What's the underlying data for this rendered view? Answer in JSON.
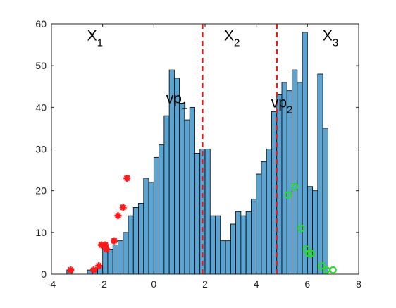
{
  "chart_data": {
    "type": "bar",
    "xlim": [
      -4,
      8
    ],
    "ylim": [
      0,
      60
    ],
    "xticks": [
      -4,
      -2,
      0,
      2,
      4,
      6,
      8
    ],
    "yticks": [
      0,
      10,
      20,
      30,
      40,
      50,
      60
    ],
    "grid": false,
    "bin_width": 0.2,
    "bin_start": -3.4,
    "counts": [
      1,
      0,
      0,
      0,
      1,
      1,
      2,
      7,
      6,
      7,
      8,
      10,
      14,
      16,
      17,
      23,
      22,
      28,
      31,
      38,
      49,
      47,
      41,
      37,
      40,
      29,
      30,
      30,
      14,
      14,
      8,
      8,
      12,
      15,
      14,
      15,
      18,
      24,
      27,
      30,
      39,
      43,
      46,
      44,
      49,
      46,
      58,
      21,
      20,
      48,
      35
    ],
    "bar_color": "#5ba3d0",
    "vlines": [
      {
        "x": 1.9,
        "color": "#e02020",
        "style": "dashed"
      },
      {
        "x": 4.8,
        "color": "#e02020",
        "style": "dashed"
      }
    ],
    "annotations": [
      {
        "id": "x1",
        "base": "X",
        "sub": "1",
        "x": -2.3,
        "y": 56
      },
      {
        "id": "x2",
        "base": "X",
        "sub": "2",
        "x": 3.05,
        "y": 56
      },
      {
        "id": "x3",
        "base": "X",
        "sub": "3",
        "x": 6.9,
        "y": 56
      },
      {
        "id": "vp1",
        "base": "vp",
        "sub": "1",
        "x": 0.9,
        "y": 41
      },
      {
        "id": "vp2",
        "base": "vp",
        "sub": "2",
        "x": 5.0,
        "y": 40
      }
    ],
    "series": [
      {
        "marker": "star",
        "color": "#ff1a1a",
        "points": [
          [
            -3.25,
            1
          ],
          [
            -2.35,
            1
          ],
          [
            -2.15,
            2
          ],
          [
            -2.05,
            7
          ],
          [
            -1.9,
            7
          ],
          [
            -1.85,
            6
          ],
          [
            -1.55,
            8
          ],
          [
            -1.4,
            14
          ],
          [
            -1.2,
            16
          ],
          [
            -1.05,
            23
          ]
        ]
      },
      {
        "marker": "circle",
        "color": "#22dd22",
        "points": [
          [
            5.25,
            19
          ],
          [
            5.5,
            21
          ],
          [
            5.75,
            11
          ],
          [
            5.95,
            6
          ],
          [
            6.05,
            5
          ],
          [
            6.15,
            5
          ],
          [
            6.55,
            2
          ],
          [
            6.75,
            1
          ],
          [
            7.0,
            1
          ]
        ]
      }
    ]
  }
}
